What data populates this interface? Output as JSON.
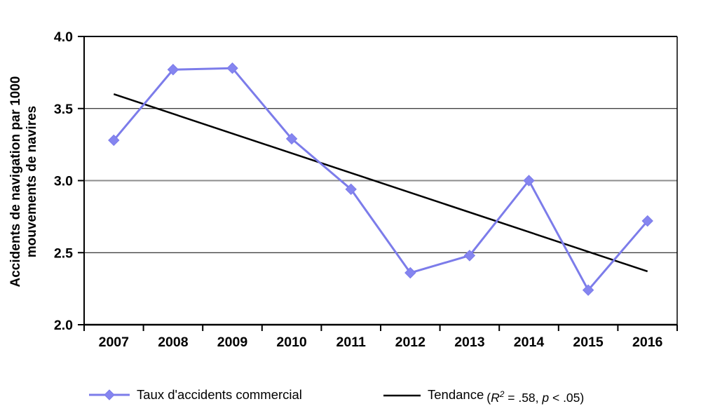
{
  "chart_data": {
    "type": "line",
    "categories": [
      "2007",
      "2008",
      "2009",
      "2010",
      "2011",
      "2012",
      "2013",
      "2014",
      "2015",
      "2016"
    ],
    "series": [
      {
        "name": "Taux d'accidents commercial",
        "values": [
          3.28,
          3.77,
          3.78,
          3.29,
          2.94,
          2.36,
          2.48,
          3.0,
          2.24,
          2.72
        ],
        "color": "#7c7cea",
        "marker": "diamond"
      },
      {
        "name": "Tendance",
        "type": "trend",
        "start": 3.6,
        "end": 2.37,
        "color": "#000000"
      }
    ],
    "title": "",
    "xlabel": "",
    "ylabel_lines": [
      "Accidents de navigation par 1000",
      "mouvements de navires"
    ],
    "ylim": [
      2.0,
      4.0
    ],
    "yticks": [
      {
        "value": 4.0,
        "label": "4.0"
      },
      {
        "value": 3.5,
        "label": "3.5"
      },
      {
        "value": 3.0,
        "label": "3.0"
      },
      {
        "value": 2.5,
        "label": "2.5"
      },
      {
        "value": 2.0,
        "label": "2.0"
      }
    ],
    "grid": "horizontal",
    "legend_position": "bottom"
  },
  "legend": {
    "series_label": "Taux d'accidents commercial",
    "trend_label": "Tendance",
    "stats": {
      "open": "(",
      "r": "R",
      "r_sup": "2",
      "eq": " = .58, ",
      "p": "p",
      "close": " < .05)"
    }
  },
  "colors": {
    "series": "#7c7cea",
    "series_marker_fill": "#8585f0",
    "trend": "#000000",
    "gridline": "#000000",
    "gridline_gray": "#8c8c8c",
    "axis": "#000000"
  }
}
